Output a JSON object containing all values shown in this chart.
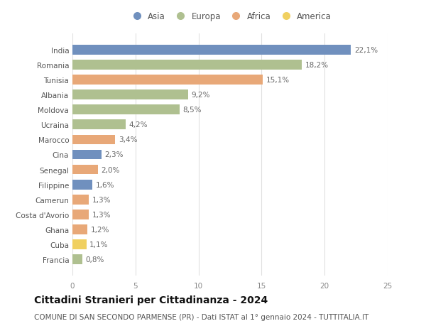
{
  "countries": [
    "Francia",
    "Cuba",
    "Ghana",
    "Costa d'Avorio",
    "Camerun",
    "Filippine",
    "Senegal",
    "Cina",
    "Marocco",
    "Ucraina",
    "Moldova",
    "Albania",
    "Tunisia",
    "Romania",
    "India"
  ],
  "values": [
    0.8,
    1.1,
    1.2,
    1.3,
    1.3,
    1.6,
    2.0,
    2.3,
    3.4,
    4.2,
    8.5,
    9.2,
    15.1,
    18.2,
    22.1
  ],
  "labels": [
    "0,8%",
    "1,1%",
    "1,2%",
    "1,3%",
    "1,3%",
    "1,6%",
    "2,0%",
    "2,3%",
    "3,4%",
    "4,2%",
    "8,5%",
    "9,2%",
    "15,1%",
    "18,2%",
    "22,1%"
  ],
  "continents": [
    "Europa",
    "America",
    "Africa",
    "Africa",
    "Africa",
    "Asia",
    "Africa",
    "Asia",
    "Africa",
    "Europa",
    "Europa",
    "Europa",
    "Africa",
    "Europa",
    "Asia"
  ],
  "continent_colors": {
    "Asia": "#7090be",
    "Europa": "#afc090",
    "Africa": "#e8a878",
    "America": "#f0d060"
  },
  "legend_order": [
    "Asia",
    "Europa",
    "Africa",
    "America"
  ],
  "title": "Cittadini Stranieri per Cittadinanza - 2024",
  "subtitle": "COMUNE DI SAN SECONDO PARMENSE (PR) - Dati ISTAT al 1° gennaio 2024 - TUTTITALIA.IT",
  "xlim": [
    0,
    25
  ],
  "xticks": [
    0,
    5,
    10,
    15,
    20,
    25
  ],
  "background_color": "#ffffff",
  "grid_color": "#e0e0e0",
  "bar_height": 0.65,
  "title_fontsize": 10,
  "subtitle_fontsize": 7.5,
  "label_fontsize": 7.5,
  "tick_fontsize": 7.5,
  "legend_fontsize": 8.5
}
